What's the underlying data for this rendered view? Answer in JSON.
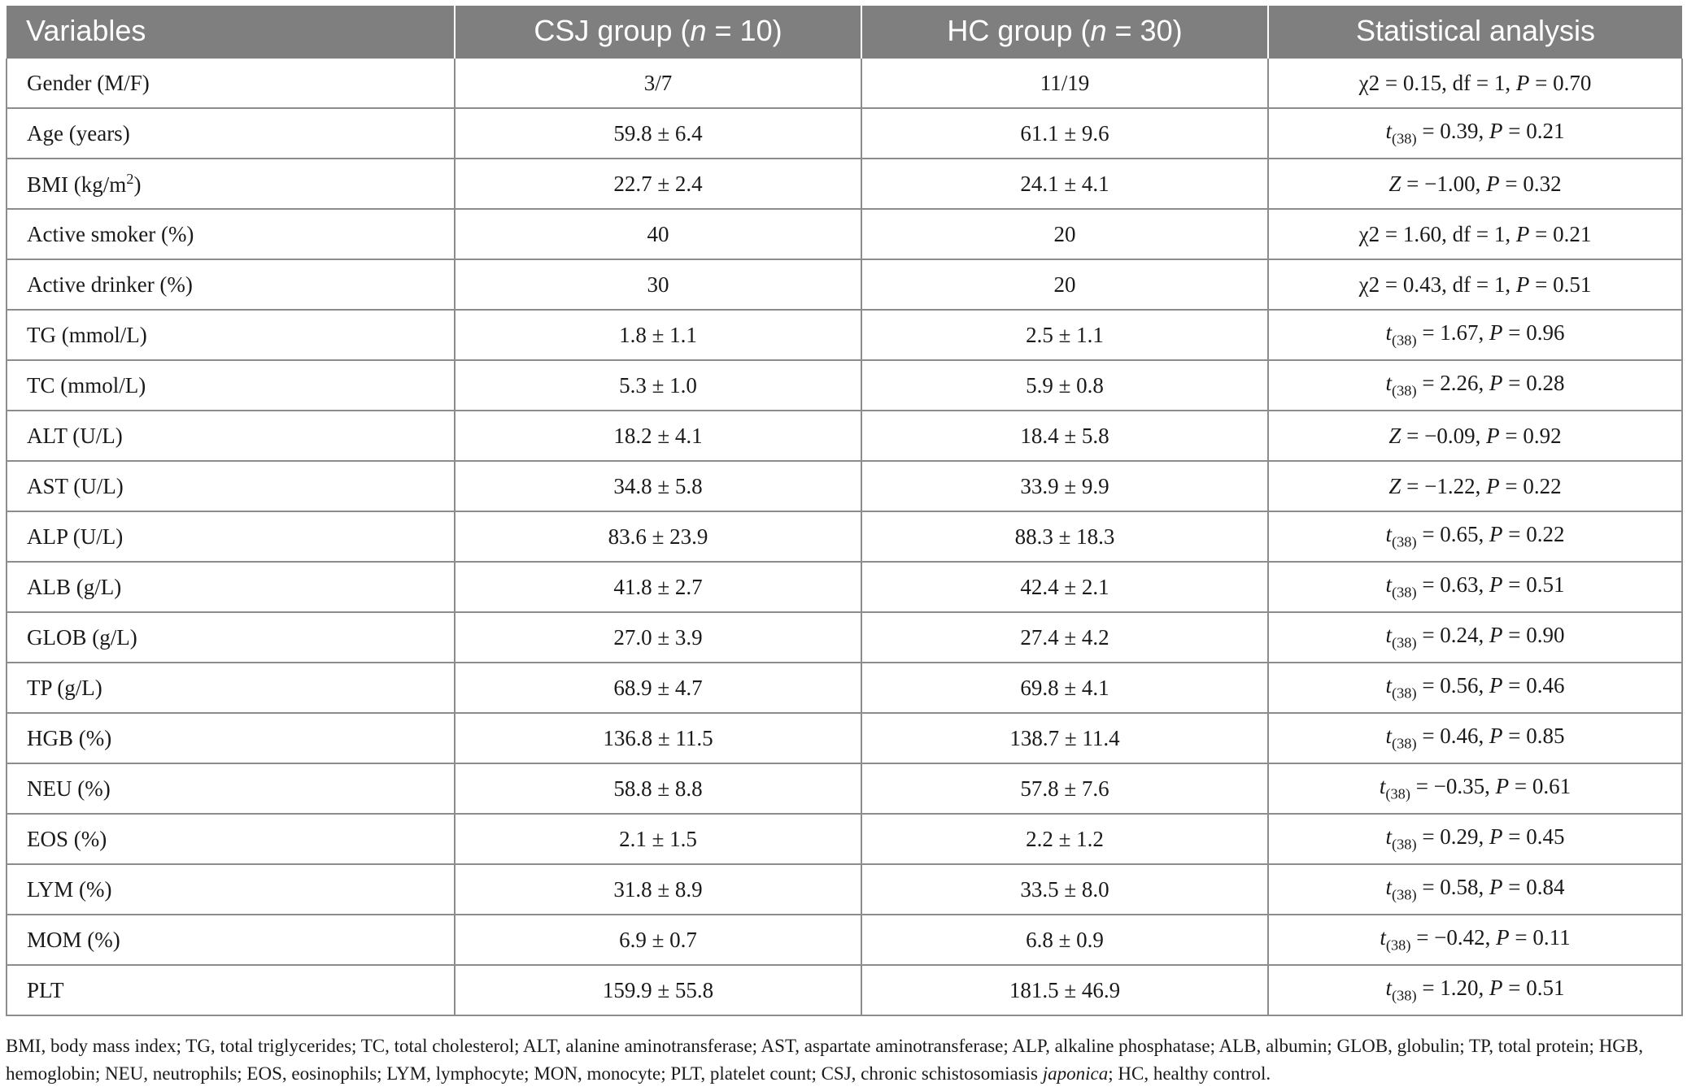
{
  "table": {
    "headers": {
      "variables": "Variables",
      "csj": {
        "pre": "CSJ group (",
        "n": "n",
        "post": " = 10)"
      },
      "hc": {
        "pre": "HC group (",
        "n": "n",
        "post": " = 30)"
      },
      "stat": "Statistical analysis"
    },
    "rows": [
      {
        "var": "Gender (M/F)",
        "csj": "3/7",
        "hc": "11/19",
        "stat": {
          "type": "chi",
          "a": "χ2 = 0.15, df = 1, ",
          "p": "P",
          "b": " = 0.70"
        }
      },
      {
        "var": "Age (years)",
        "csj": "59.8 ± 6.4",
        "hc": "61.1 ± 9.6",
        "stat": {
          "type": "t",
          "t": "t",
          "sub": "(38)",
          "a": " = 0.39, ",
          "p": "P",
          "b": " = 0.21"
        }
      },
      {
        "var_pre": "BMI (kg/m",
        "var_sup": "2",
        "var_post": ")",
        "csj": "22.7 ± 2.4",
        "hc": "24.1 ± 4.1",
        "stat": {
          "type": "z",
          "z": "Z",
          "a": " = −1.00, ",
          "p": "P",
          "b": " = 0.32"
        }
      },
      {
        "var": "Active smoker (%)",
        "csj": "40",
        "hc": "20",
        "stat": {
          "type": "chi",
          "a": "χ2 = 1.60, df = 1, ",
          "p": "P",
          "b": " = 0.21"
        }
      },
      {
        "var": "Active drinker (%)",
        "csj": "30",
        "hc": "20",
        "stat": {
          "type": "chi",
          "a": "χ2 = 0.43, df = 1, ",
          "p": "P",
          "b": " = 0.51"
        }
      },
      {
        "var": "TG (mmol/L)",
        "csj": "1.8 ± 1.1",
        "hc": "2.5 ± 1.1",
        "stat": {
          "type": "t",
          "t": "t",
          "sub": "(38)",
          "a": " = 1.67, ",
          "p": "P",
          "b": " = 0.96"
        }
      },
      {
        "var": "TC (mmol/L)",
        "csj": "5.3 ± 1.0",
        "hc": "5.9 ± 0.8",
        "stat": {
          "type": "t",
          "t": "t",
          "sub": "(38)",
          "a": " = 2.26, ",
          "p": "P",
          "b": " = 0.28"
        }
      },
      {
        "var": "ALT (U/L)",
        "csj": "18.2 ± 4.1",
        "hc": "18.4 ± 5.8",
        "stat": {
          "type": "z",
          "z": "Z",
          "a": " = −0.09, ",
          "p": "P",
          "b": " = 0.92"
        }
      },
      {
        "var": "AST (U/L)",
        "csj": "34.8 ± 5.8",
        "hc": "33.9 ± 9.9",
        "stat": {
          "type": "z",
          "z": "Z",
          "a": " = −1.22, ",
          "p": "P",
          "b": " = 0.22"
        }
      },
      {
        "var": "ALP (U/L)",
        "csj": "83.6 ± 23.9",
        "hc": "88.3 ± 18.3",
        "stat": {
          "type": "t",
          "t": "t",
          "sub": "(38)",
          "a": " = 0.65, ",
          "p": "P",
          "b": " = 0.22"
        }
      },
      {
        "var": "ALB (g/L)",
        "csj": "41.8 ± 2.7",
        "hc": "42.4 ± 2.1",
        "stat": {
          "type": "t",
          "t": "t",
          "sub": "(38)",
          "a": " = 0.63, ",
          "p": "P",
          "b": " = 0.51"
        }
      },
      {
        "var": "GLOB (g/L)",
        "csj": "27.0 ± 3.9",
        "hc": "27.4 ± 4.2",
        "stat": {
          "type": "t",
          "t": "t",
          "sub": "(38)",
          "a": " = 0.24, ",
          "p": "P",
          "b": " = 0.90"
        }
      },
      {
        "var": "TP (g/L)",
        "csj": "68.9 ± 4.7",
        "hc": "69.8 ± 4.1",
        "stat": {
          "type": "t",
          "t": "t",
          "sub": "(38)",
          "a": " = 0.56, ",
          "p": "P",
          "b": " = 0.46"
        }
      },
      {
        "var": "HGB (%)",
        "csj": "136.8 ± 11.5",
        "hc": "138.7 ± 11.4",
        "stat": {
          "type": "t",
          "t": "t",
          "sub": "(38)",
          "a": " = 0.46, ",
          "p": "P",
          "b": " = 0.85"
        }
      },
      {
        "var": "NEU (%)",
        "csj": "58.8 ± 8.8",
        "hc": "57.8 ± 7.6",
        "stat": {
          "type": "t",
          "t": "t",
          "sub": "(38)",
          "a": " = −0.35, ",
          "p": "P",
          "b": " = 0.61"
        }
      },
      {
        "var": "EOS (%)",
        "csj": "2.1 ± 1.5",
        "hc": "2.2 ± 1.2",
        "stat": {
          "type": "t",
          "t": "t",
          "sub": "(38)",
          "a": " = 0.29, ",
          "p": "P",
          "b": " = 0.45"
        }
      },
      {
        "var": "LYM (%)",
        "csj": "31.8 ± 8.9",
        "hc": "33.5 ± 8.0",
        "stat": {
          "type": "t",
          "t": "t",
          "sub": "(38)",
          "a": " = 0.58, ",
          "p": "P",
          "b": " = 0.84"
        }
      },
      {
        "var": "MOM (%)",
        "csj": "6.9 ± 0.7",
        "hc": "6.8 ± 0.9",
        "stat": {
          "type": "t",
          "t": "t",
          "sub": "(38)",
          "a": " = −0.42, ",
          "p": "P",
          "b": " = 0.11"
        }
      },
      {
        "var": "PLT",
        "csj": "159.9 ± 55.8",
        "hc": "181.5 ± 46.9",
        "stat": {
          "type": "t",
          "t": "t",
          "sub": "(38)",
          "a": " = 1.20, ",
          "p": "P",
          "b": " = 0.51"
        }
      }
    ]
  },
  "footnote": {
    "pre": "BMI, body mass index; TG, total triglycerides; TC, total cholesterol; ALT, alanine aminotransferase; AST, aspartate aminotransferase; ALP, alkaline phosphatase; ALB, albumin; GLOB, globulin; TP, total protein; HGB, hemoglobin; NEU, neutrophils; EOS, eosinophils; LYM, lymphocyte; MON, monocyte; PLT, platelet count; CSJ, chronic schistosomiasis ",
    "italic": "japonica",
    "post": "; HC, healthy control."
  },
  "colors": {
    "header_bg": "#7f7f7f",
    "header_text": "#ffffff",
    "grid": "#8c8c8c"
  }
}
